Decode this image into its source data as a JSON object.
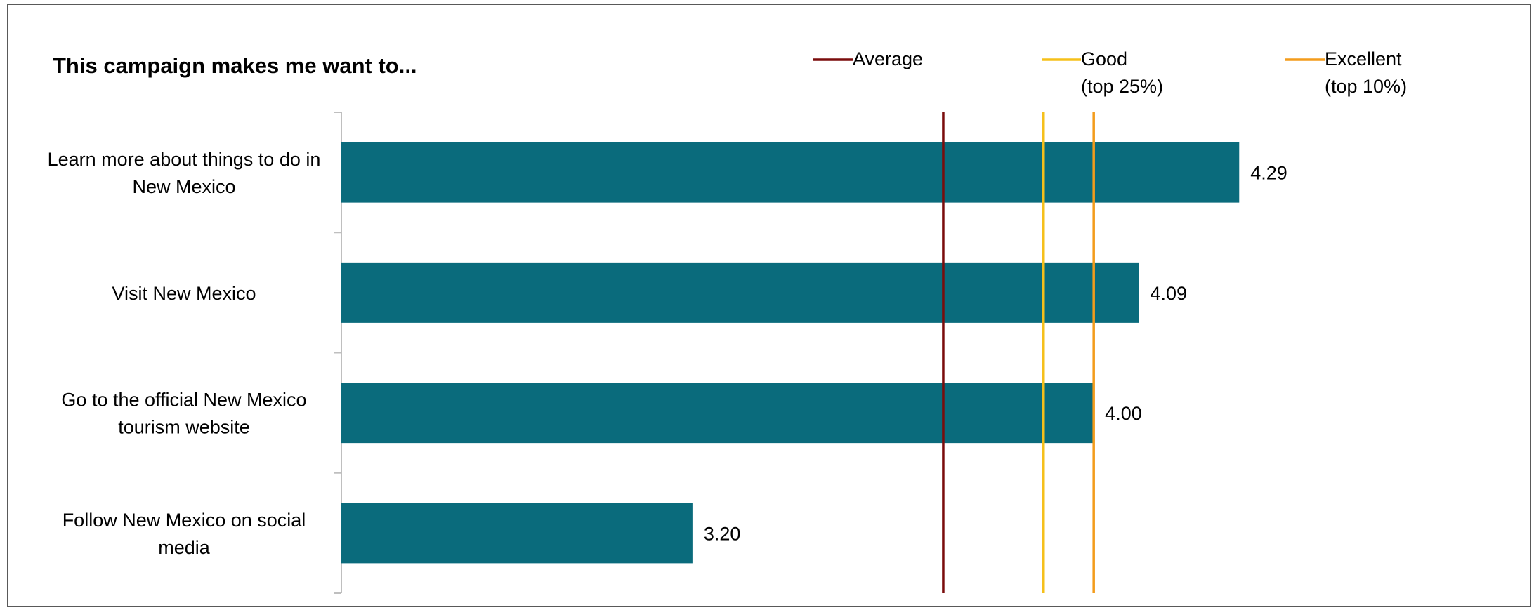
{
  "chart_data": {
    "type": "bar",
    "orientation": "horizontal",
    "title": "This campaign makes me want to...",
    "categories": [
      [
        "Learn more about things to do in",
        "New Mexico"
      ],
      [
        "Visit New Mexico"
      ],
      [
        "Go to the official New Mexico",
        "tourism website"
      ],
      [
        "Follow New Mexico on social",
        "media"
      ]
    ],
    "values": [
      4.29,
      4.09,
      4.0,
      3.2
    ],
    "value_labels": [
      "4.29",
      "4.09",
      "4.00",
      "3.20"
    ],
    "xlim": [
      2.5,
      4.5
    ],
    "bar_color": "#0a6b7c",
    "benchmarks": [
      {
        "name": "Average",
        "lines": [
          "Average"
        ],
        "value": 3.7,
        "color": "#7a0c0c"
      },
      {
        "name": "Good (top 25%)",
        "lines": [
          "Good",
          "(top 25%)"
        ],
        "value": 3.9,
        "color": "#f5c01a"
      },
      {
        "name": "Excellent (top 10%)",
        "lines": [
          "Excellent",
          "(top 10%)"
        ],
        "value": 4.0,
        "color": "#f39c1c"
      }
    ],
    "legend": "top",
    "grid": false
  }
}
